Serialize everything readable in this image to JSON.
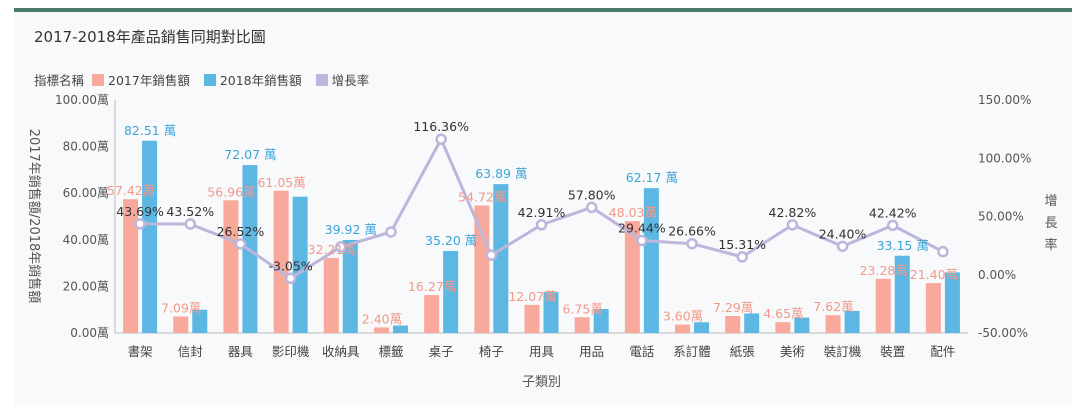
{
  "chart_data": {
    "type": "bar",
    "title": "2017-2018年產品銷售同期對比圖",
    "legend_title": "指標名稱",
    "xlabel": "子類別",
    "ylabel_left": "2017年銷售額/2018年銷售額",
    "ylabel_right": "增長率",
    "ylim_left": [
      0,
      100
    ],
    "ylim_right": [
      -50,
      150
    ],
    "yticks_left": [
      "0.00萬",
      "20.00萬",
      "40.00萬",
      "60.00萬",
      "80.00萬",
      "100.00萬"
    ],
    "yticks_right": [
      "-50.00%",
      "0.00%",
      "50.00%",
      "100.00%",
      "150.00%"
    ],
    "categories": [
      "書架",
      "信封",
      "器具",
      "影印機",
      "收納具",
      "標籤",
      "桌子",
      "椅子",
      "用具",
      "用品",
      "電話",
      "系訂體",
      "紙張",
      "美術",
      "裝訂機",
      "裝置",
      "配件"
    ],
    "series": [
      {
        "name": "2017年銷售額",
        "type": "bar",
        "color": "#f8a99b",
        "values": [
          57.42,
          7.09,
          56.96,
          61.05,
          32.21,
          2.4,
          16.27,
          54.72,
          12.07,
          6.75,
          48.03,
          3.6,
          7.29,
          4.65,
          7.62,
          23.28,
          21.4
        ],
        "labels": [
          "57.42萬",
          "7.09萬",
          "56.96萬",
          "61.05萬",
          "32.21萬",
          "2.40萬",
          "16.27萬",
          "54.72萬",
          "12.07萬",
          "6.75萬",
          "48.03萬",
          "3.60萬",
          "7.29萬",
          "4.65萬",
          "7.62萬",
          "23.28萬",
          "21.40萬"
        ]
      },
      {
        "name": "2018年銷售額",
        "type": "bar",
        "color": "#5db7e3",
        "values": [
          82.51,
          10.0,
          72.07,
          58.5,
          39.92,
          3.2,
          35.2,
          63.89,
          17.5,
          10.3,
          62.17,
          4.6,
          8.4,
          6.6,
          9.5,
          33.15,
          26.0
        ],
        "labels": [
          "82.51 萬",
          "",
          "72.07 萬",
          "",
          "39.92 萬",
          "",
          "35.20 萬",
          "63.89 萬",
          "",
          "",
          "62.17 萬",
          "",
          "",
          "",
          "",
          "33.15 萬",
          ""
        ]
      },
      {
        "name": "增長率",
        "type": "line",
        "color": "#bdb6dc",
        "values": [
          43.69,
          43.52,
          26.52,
          -3.05,
          23.9,
          36.7,
          116.36,
          16.8,
          42.91,
          57.8,
          29.44,
          26.66,
          15.31,
          42.82,
          24.4,
          42.42,
          19.8
        ],
        "labels": [
          "43.69%",
          "43.52%",
          "26.52%",
          "-3.05%",
          "",
          "",
          "116.36%",
          "",
          "42.91%",
          "57.80%",
          "29.44%",
          "26.66%",
          "15.31%",
          "42.82%",
          "24.40%",
          "42.42%",
          ""
        ]
      }
    ]
  }
}
